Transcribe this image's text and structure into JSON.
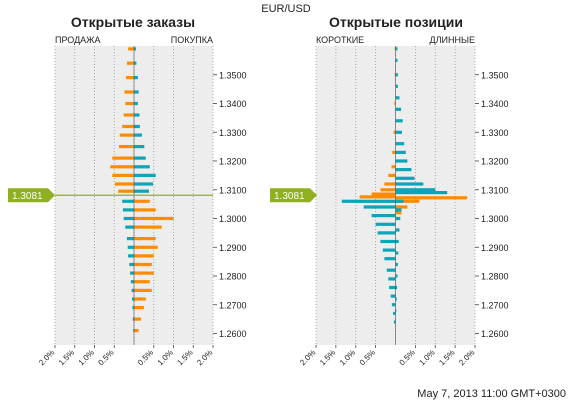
{
  "title": "EUR/USD",
  "timestamp": "May 7, 2013 11:00 GMT+0300",
  "colors": {
    "orange": "#ff8c00",
    "teal": "#0aa5b8",
    "price": "#8fb020",
    "grid": "#ededed"
  },
  "chart_data": [
    {
      "type": "bar",
      "orientation": "horizontal",
      "title": "Открытые заказы",
      "left_label": "ПРОДАЖА",
      "right_label": "ПОКУПКА",
      "current_price": 1.3081,
      "current_price_label": "1.3081",
      "ylim": [
        1.256,
        1.36
      ],
      "xlim": [
        -2.0,
        2.0
      ],
      "yticks": [
        "1.2600",
        "1.2700",
        "1.2800",
        "1.2900",
        "1.3000",
        "1.3100",
        "1.3200",
        "1.3300",
        "1.3400",
        "1.3500"
      ],
      "xticks": [
        "2.0%",
        "1.5%",
        "1.0%",
        "0.5%",
        "0.5%",
        "1.0%",
        "1.5%",
        "2.0%"
      ],
      "series": [
        {
          "side": "left",
          "color": "orange",
          "points": [
            [
              1.359,
              0.15
            ],
            [
              1.354,
              0.18
            ],
            [
              1.349,
              0.2
            ],
            [
              1.344,
              0.24
            ],
            [
              1.34,
              0.22
            ],
            [
              1.336,
              0.26
            ],
            [
              1.332,
              0.3
            ],
            [
              1.329,
              0.36
            ],
            [
              1.325,
              0.38
            ],
            [
              1.321,
              0.55
            ],
            [
              1.318,
              0.6
            ],
            [
              1.315,
              0.55
            ],
            [
              1.312,
              0.48
            ],
            [
              1.3095,
              0.4
            ]
          ]
        },
        {
          "side": "right",
          "color": "teal",
          "points": [
            [
              1.359,
              0.05
            ],
            [
              1.354,
              0.06
            ],
            [
              1.349,
              0.1
            ],
            [
              1.344,
              0.12
            ],
            [
              1.34,
              0.1
            ],
            [
              1.336,
              0.14
            ],
            [
              1.332,
              0.15
            ],
            [
              1.329,
              0.2
            ],
            [
              1.325,
              0.26
            ],
            [
              1.321,
              0.3
            ],
            [
              1.318,
              0.4
            ],
            [
              1.315,
              0.55
            ],
            [
              1.312,
              0.48
            ],
            [
              1.3095,
              0.38
            ]
          ]
        },
        {
          "side": "right",
          "color": "orange",
          "points": [
            [
              1.306,
              0.4
            ],
            [
              1.303,
              0.55
            ],
            [
              1.3,
              1.0
            ],
            [
              1.297,
              0.7
            ],
            [
              1.293,
              0.55
            ],
            [
              1.29,
              0.6
            ],
            [
              1.287,
              0.5
            ],
            [
              1.284,
              0.45
            ],
            [
              1.281,
              0.5
            ],
            [
              1.278,
              0.4
            ],
            [
              1.275,
              0.45
            ],
            [
              1.272,
              0.3
            ],
            [
              1.269,
              0.25
            ],
            [
              1.265,
              0.18
            ],
            [
              1.261,
              0.12
            ]
          ]
        },
        {
          "side": "left",
          "color": "teal",
          "points": [
            [
              1.306,
              0.3
            ],
            [
              1.303,
              0.28
            ],
            [
              1.3,
              0.26
            ],
            [
              1.297,
              0.22
            ],
            [
              1.293,
              0.18
            ],
            [
              1.29,
              0.16
            ],
            [
              1.287,
              0.15
            ],
            [
              1.284,
              0.12
            ],
            [
              1.281,
              0.1
            ],
            [
              1.278,
              0.08
            ],
            [
              1.275,
              0.06
            ],
            [
              1.272,
              0.05
            ],
            [
              1.269,
              0.04
            ],
            [
              1.265,
              0.03
            ],
            [
              1.261,
              0.02
            ]
          ]
        }
      ]
    },
    {
      "type": "bar",
      "orientation": "horizontal",
      "title": "Открытые позиции",
      "left_label": "КОРОТКИЕ",
      "right_label": "ДЛИННЫЕ",
      "current_price": 1.3081,
      "current_price_label": "1.3081",
      "ylim": [
        1.256,
        1.36
      ],
      "xlim": [
        -2.0,
        2.0
      ],
      "yticks": [
        "1.2600",
        "1.2700",
        "1.2800",
        "1.2900",
        "1.3000",
        "1.3100",
        "1.3200",
        "1.3300",
        "1.3400",
        "1.3500"
      ],
      "xticks": [
        "2.0%",
        "1.5%",
        "1.0%",
        "0.5%",
        "0.5%",
        "1.0%",
        "1.5%",
        "2.0%"
      ],
      "series": [
        {
          "side": "right",
          "color": "teal",
          "points": [
            [
              1.359,
              0.05
            ],
            [
              1.355,
              0.05
            ],
            [
              1.35,
              0.06
            ],
            [
              1.346,
              0.06
            ],
            [
              1.342,
              0.1
            ],
            [
              1.338,
              0.14
            ],
            [
              1.334,
              0.18
            ],
            [
              1.33,
              0.16
            ],
            [
              1.326,
              0.22
            ],
            [
              1.323,
              0.26
            ],
            [
              1.32,
              0.3
            ],
            [
              1.317,
              0.4
            ],
            [
              1.314,
              0.48
            ],
            [
              1.312,
              0.7
            ],
            [
              1.31,
              1.0
            ],
            [
              1.309,
              1.3
            ]
          ]
        },
        {
          "side": "left",
          "color": "orange",
          "points": [
            [
              1.359,
              0.02
            ],
            [
              1.35,
              0.02
            ],
            [
              1.34,
              0.03
            ],
            [
              1.33,
              0.05
            ],
            [
              1.323,
              0.08
            ],
            [
              1.318,
              0.1
            ],
            [
              1.315,
              0.18
            ],
            [
              1.312,
              0.28
            ],
            [
              1.31,
              0.38
            ],
            [
              1.3085,
              0.6
            ],
            [
              1.3075,
              0.9
            ]
          ]
        },
        {
          "side": "right",
          "color": "orange",
          "points": [
            [
              1.3072,
              1.8
            ],
            [
              1.306,
              0.6
            ],
            [
              1.304,
              0.3
            ],
            [
              1.302,
              0.15
            ],
            [
              1.3,
              0.08
            ]
          ]
        },
        {
          "side": "left",
          "color": "teal",
          "points": [
            [
              1.306,
              1.35
            ],
            [
              1.304,
              0.8
            ],
            [
              1.301,
              0.6
            ],
            [
              1.298,
              0.5
            ],
            [
              1.295,
              0.45
            ],
            [
              1.292,
              0.38
            ],
            [
              1.289,
              0.32
            ],
            [
              1.286,
              0.28
            ],
            [
              1.282,
              0.22
            ],
            [
              1.279,
              0.18
            ],
            [
              1.276,
              0.16
            ],
            [
              1.273,
              0.12
            ],
            [
              1.27,
              0.09
            ],
            [
              1.267,
              0.06
            ],
            [
              1.264,
              0.04
            ]
          ]
        },
        {
          "side": "right",
          "color": "teal",
          "points": [
            [
              1.306,
              0.2
            ],
            [
              1.303,
              0.15
            ],
            [
              1.3,
              0.12
            ],
            [
              1.296,
              0.1
            ],
            [
              1.292,
              0.08
            ],
            [
              1.288,
              0.07
            ],
            [
              1.284,
              0.06
            ],
            [
              1.28,
              0.05
            ],
            [
              1.276,
              0.04
            ],
            [
              1.272,
              0.03
            ],
            [
              1.268,
              0.02
            ]
          ]
        }
      ]
    }
  ]
}
